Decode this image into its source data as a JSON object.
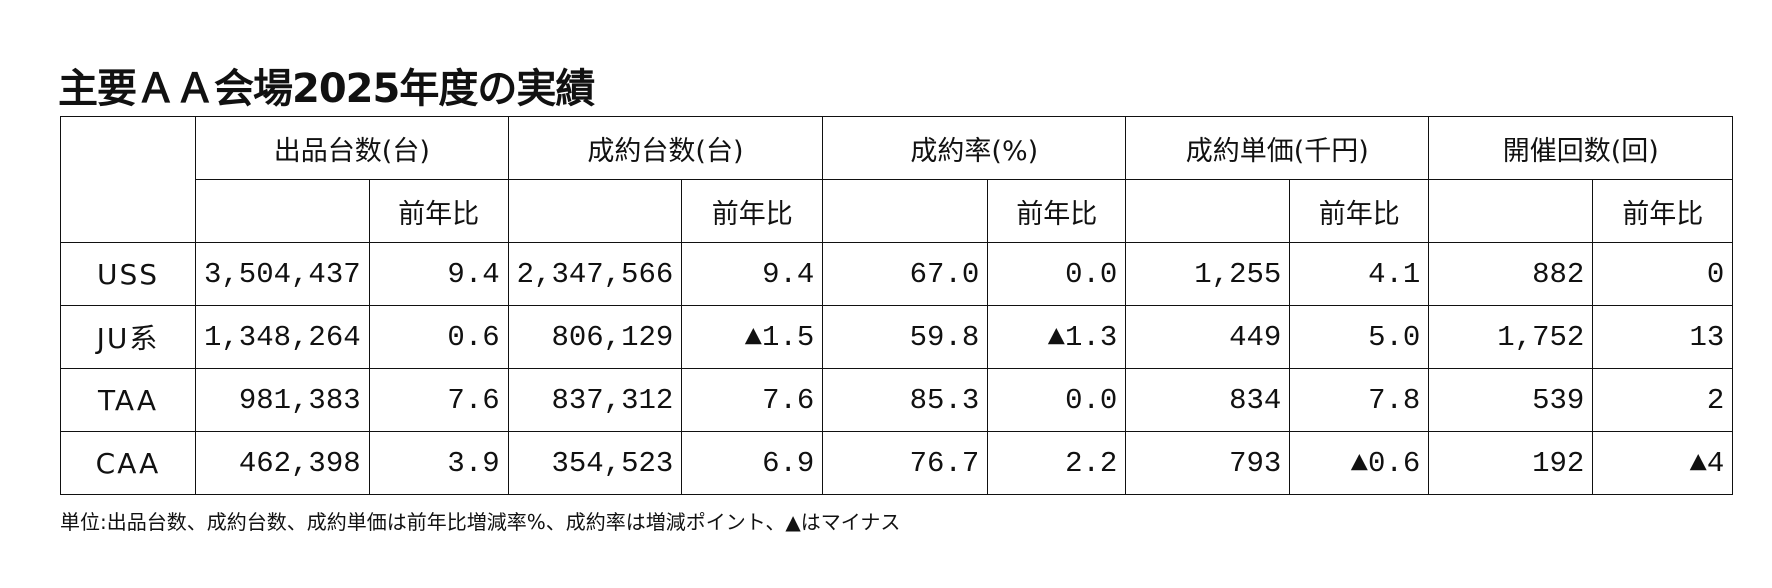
{
  "title": "主要ＡＡ会場2025年度の実績",
  "table": {
    "groups": [
      {
        "label": "出品台数(台)",
        "sub": "前年比"
      },
      {
        "label": "成約台数(台)",
        "sub": "前年比"
      },
      {
        "label": "成約率(%)",
        "sub": "前年比"
      },
      {
        "label": "成約単価(千円)",
        "sub": "前年比"
      },
      {
        "label": "開催回数(回)",
        "sub": "前年比"
      }
    ],
    "rows": [
      [
        "USS",
        "3,504,437",
        "9.4",
        "2,347,566",
        "9.4",
        "67.0",
        "0.0",
        "1,255",
        "4.1",
        "882",
        "0"
      ],
      [
        "JU系",
        "1,348,264",
        "0.6",
        "806,129",
        "▲1.5",
        "59.8",
        "▲1.3",
        "449",
        "5.0",
        "1,752",
        "13"
      ],
      [
        "TAA",
        "981,383",
        "7.6",
        "837,312",
        "7.6",
        "85.3",
        "0.0",
        "834",
        "7.8",
        "539",
        "2"
      ],
      [
        "CAA",
        "462,398",
        "3.9",
        "354,523",
        "6.9",
        "76.7",
        "2.2",
        "793",
        "▲0.6",
        "192",
        "▲4"
      ]
    ]
  },
  "footnote": "単位:出品台数、成約台数、成約単価は前年比増減率%、成約率は増減ポイント、▲はマイナス"
}
